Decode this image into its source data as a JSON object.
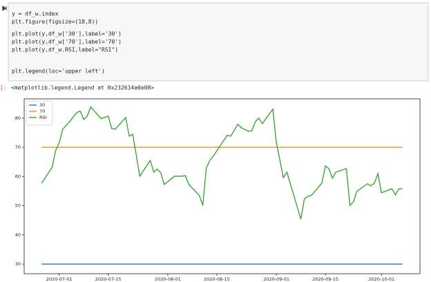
{
  "code": [
    [
      "y = df_w.index",
      "plt.figure(figsize=(18,8))"
    ],
    [
      "plt.plot(y,df_w['30'],label='30')",
      "plt.plot(y,df_w['70'],label='70')",
      "plt.plot(y,df_w.RSI,label=\"RSI\")"
    ],
    [
      "plt.legend(loc='upper left')"
    ]
  ],
  "output_prompt": "]:",
  "output": "<matplotlib.legend.Legend at 0x232614a0e08>",
  "chart_data": {
    "type": "line",
    "x": [
      "2020-06-26",
      "2020-06-29",
      "2020-06-30",
      "2020-07-01",
      "2020-07-02",
      "2020-07-04",
      "2020-07-06",
      "2020-07-07",
      "2020-07-08",
      "2020-07-09",
      "2020-07-10",
      "2020-07-13",
      "2020-07-15",
      "2020-07-16",
      "2020-07-17",
      "2020-07-20",
      "2020-07-21",
      "2020-07-22",
      "2020-07-24",
      "2020-07-27",
      "2020-07-28",
      "2020-07-29",
      "2020-07-30",
      "2020-07-31",
      "2020-08-03",
      "2020-08-05",
      "2020-08-06",
      "2020-08-07",
      "2020-08-10",
      "2020-08-11",
      "2020-08-12",
      "2020-08-13",
      "2020-08-14",
      "2020-08-17",
      "2020-08-18",
      "2020-08-19",
      "2020-08-21",
      "2020-08-22",
      "2020-08-24",
      "2020-08-25",
      "2020-08-26",
      "2020-08-27",
      "2020-08-28",
      "2020-08-31",
      "2020-09-01",
      "2020-09-03",
      "2020-09-04",
      "2020-09-08",
      "2020-09-09",
      "2020-09-10",
      "2020-09-11",
      "2020-09-14",
      "2020-09-15",
      "2020-09-16",
      "2020-09-17",
      "2020-09-18",
      "2020-09-21",
      "2020-09-22",
      "2020-09-23",
      "2020-09-24",
      "2020-09-27",
      "2020-09-28",
      "2020-09-29",
      "2020-09-30",
      "2020-10-01",
      "2020-10-04",
      "2020-10-05",
      "2020-10-06",
      "2020-10-07"
    ],
    "series": [
      {
        "name": "30",
        "color": "#1f77b4",
        "values": [
          30,
          30,
          30,
          30,
          30,
          30,
          30,
          30,
          30,
          30,
          30,
          30,
          30,
          30,
          30,
          30,
          30,
          30,
          30,
          30,
          30,
          30,
          30,
          30,
          30,
          30,
          30,
          30,
          30,
          30,
          30,
          30,
          30,
          30,
          30,
          30,
          30,
          30,
          30,
          30,
          30,
          30,
          30,
          30,
          30,
          30,
          30,
          30,
          30,
          30,
          30,
          30,
          30,
          30,
          30,
          30,
          30,
          30,
          30,
          30,
          30,
          30,
          30,
          30,
          30,
          30,
          30,
          30,
          30
        ]
      },
      {
        "name": "70",
        "color": "#ff7f0e",
        "values": [
          70,
          70,
          70,
          70,
          70,
          70,
          70,
          70,
          70,
          70,
          70,
          70,
          70,
          70,
          70,
          70,
          70,
          70,
          70,
          70,
          70,
          70,
          70,
          70,
          70,
          70,
          70,
          70,
          70,
          70,
          70,
          70,
          70,
          70,
          70,
          70,
          70,
          70,
          70,
          70,
          70,
          70,
          70,
          70,
          70,
          70,
          70,
          70,
          70,
          70,
          70,
          70,
          70,
          70,
          70,
          70,
          70,
          70,
          70,
          70,
          70,
          70,
          70,
          70,
          70,
          70,
          70,
          70,
          70
        ]
      },
      {
        "name": "RSI",
        "color": "#2ca02c",
        "values": [
          57.7,
          63.2,
          68.9,
          71.5,
          76.2,
          78.8,
          81.9,
          82.4,
          79.5,
          80.7,
          83.8,
          79.8,
          80.7,
          76.4,
          76.2,
          80.2,
          73.8,
          74.5,
          60.1,
          65.5,
          61.5,
          62.5,
          61.3,
          57.3,
          60.1,
          60.1,
          60.3,
          57.3,
          53.5,
          50.1,
          62.9,
          65.5,
          67,
          72.4,
          74.1,
          73.8,
          77.9,
          76.7,
          75.5,
          75.7,
          78.8,
          80,
          78.1,
          83.1,
          71.7,
          59.6,
          61.5,
          45.4,
          52.3,
          53.2,
          53.5,
          57.7,
          63.6,
          62.7,
          59.4,
          61.5,
          62.7,
          50.1,
          51.3,
          54.9,
          57.5,
          56.8,
          57.7,
          61,
          54.4,
          55.8,
          53.7,
          55.8,
          55.8
        ]
      }
    ],
    "xlim": [
      "2020-06-21",
      "2020-10-12"
    ],
    "xticks": [
      "2020-07-01",
      "2020-07-15",
      "2020-08-01",
      "2020-08-15",
      "2020-09-01",
      "2020-09-15",
      "2020-10-01"
    ],
    "ylim": [
      26.7,
      86.6
    ],
    "yticks": [
      30,
      40,
      50,
      60,
      70,
      80
    ],
    "legend": "upper left"
  }
}
